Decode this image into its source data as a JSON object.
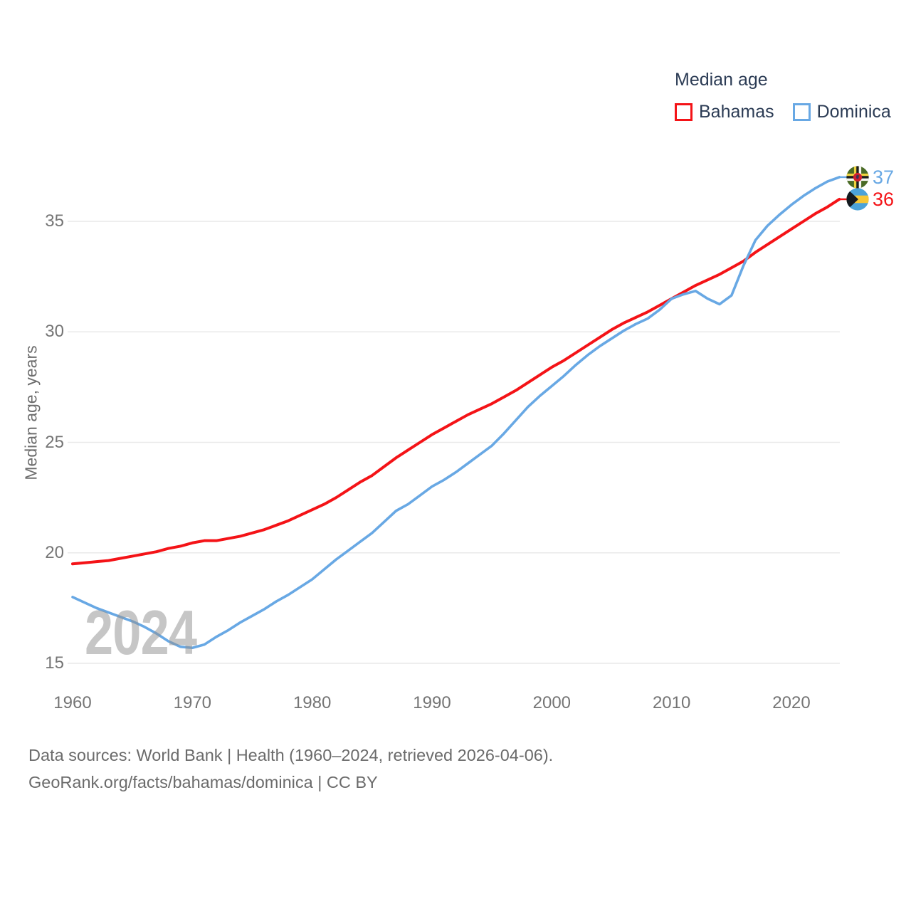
{
  "legend": {
    "title": "Median age",
    "series": [
      {
        "label": "Bahamas",
        "color": "#f41317"
      },
      {
        "label": "Dominica",
        "color": "#68a8e4"
      }
    ]
  },
  "y_axis": {
    "label": "Median age, years",
    "ticks": [
      15,
      20,
      25,
      30,
      35
    ]
  },
  "x_axis": {
    "ticks": [
      1960,
      1970,
      1980,
      1990,
      2000,
      2010,
      2020
    ]
  },
  "watermark": "2024",
  "end_labels": [
    {
      "series": "Dominica",
      "value": "37",
      "flag": "dominica-flag"
    },
    {
      "series": "Bahamas",
      "value": "36",
      "flag": "bahamas-flag"
    }
  ],
  "footer": {
    "line1": "Data sources: World Bank | Health (1960–2024, retrieved 2026-04-06).",
    "line2": "GeoRank.org/facts/bahamas/dominica | CC BY"
  },
  "chart_data": {
    "type": "line",
    "title": "Median age",
    "xlabel": "",
    "ylabel": "Median age, years",
    "xlim": [
      1960,
      2024
    ],
    "ylim": [
      15,
      37.5
    ],
    "grid": "horizontal",
    "legend_position": "top-right",
    "x": [
      1960,
      1961,
      1962,
      1963,
      1964,
      1965,
      1966,
      1967,
      1968,
      1969,
      1970,
      1971,
      1972,
      1973,
      1974,
      1975,
      1976,
      1977,
      1978,
      1979,
      1980,
      1981,
      1982,
      1983,
      1984,
      1985,
      1986,
      1987,
      1988,
      1989,
      1990,
      1991,
      1992,
      1993,
      1994,
      1995,
      1996,
      1997,
      1998,
      1999,
      2000,
      2001,
      2002,
      2003,
      2004,
      2005,
      2006,
      2007,
      2008,
      2009,
      2010,
      2011,
      2012,
      2013,
      2014,
      2015,
      2016,
      2017,
      2018,
      2019,
      2020,
      2021,
      2022,
      2023,
      2024
    ],
    "series": [
      {
        "name": "Bahamas",
        "values": [
          19.5,
          19.55,
          19.6,
          19.65,
          19.75,
          19.85,
          19.95,
          20.05,
          20.2,
          20.3,
          20.45,
          20.55,
          20.55,
          20.65,
          20.75,
          20.9,
          21.05,
          21.25,
          21.45,
          21.7,
          21.95,
          22.2,
          22.5,
          22.85,
          23.2,
          23.5,
          23.9,
          24.3,
          24.65,
          25.0,
          25.35,
          25.65,
          25.95,
          26.25,
          26.5,
          26.75,
          27.05,
          27.35,
          27.7,
          28.05,
          28.4,
          28.7,
          29.05,
          29.4,
          29.75,
          30.1,
          30.4,
          30.65,
          30.9,
          31.2,
          31.5,
          31.8,
          32.1,
          32.35,
          32.6,
          32.9,
          33.2,
          33.6,
          33.95,
          34.3,
          34.65,
          35.0,
          35.35,
          35.65,
          36.0
        ]
      },
      {
        "name": "Dominica",
        "values": [
          18.0,
          17.75,
          17.5,
          17.3,
          17.1,
          16.9,
          16.65,
          16.35,
          16.0,
          15.75,
          15.7,
          15.85,
          16.2,
          16.5,
          16.85,
          17.15,
          17.45,
          17.8,
          18.1,
          18.45,
          18.8,
          19.25,
          19.7,
          20.1,
          20.5,
          20.9,
          21.4,
          21.9,
          22.2,
          22.6,
          23.0,
          23.3,
          23.65,
          24.05,
          24.45,
          24.85,
          25.4,
          26.0,
          26.6,
          27.1,
          27.55,
          28.0,
          28.5,
          28.95,
          29.35,
          29.7,
          30.05,
          30.35,
          30.6,
          31.0,
          31.5,
          31.7,
          31.85,
          31.5,
          31.25,
          31.65,
          33.0,
          34.15,
          34.8,
          35.3,
          35.75,
          36.15,
          36.5,
          36.8,
          37.0
        ]
      }
    ]
  }
}
